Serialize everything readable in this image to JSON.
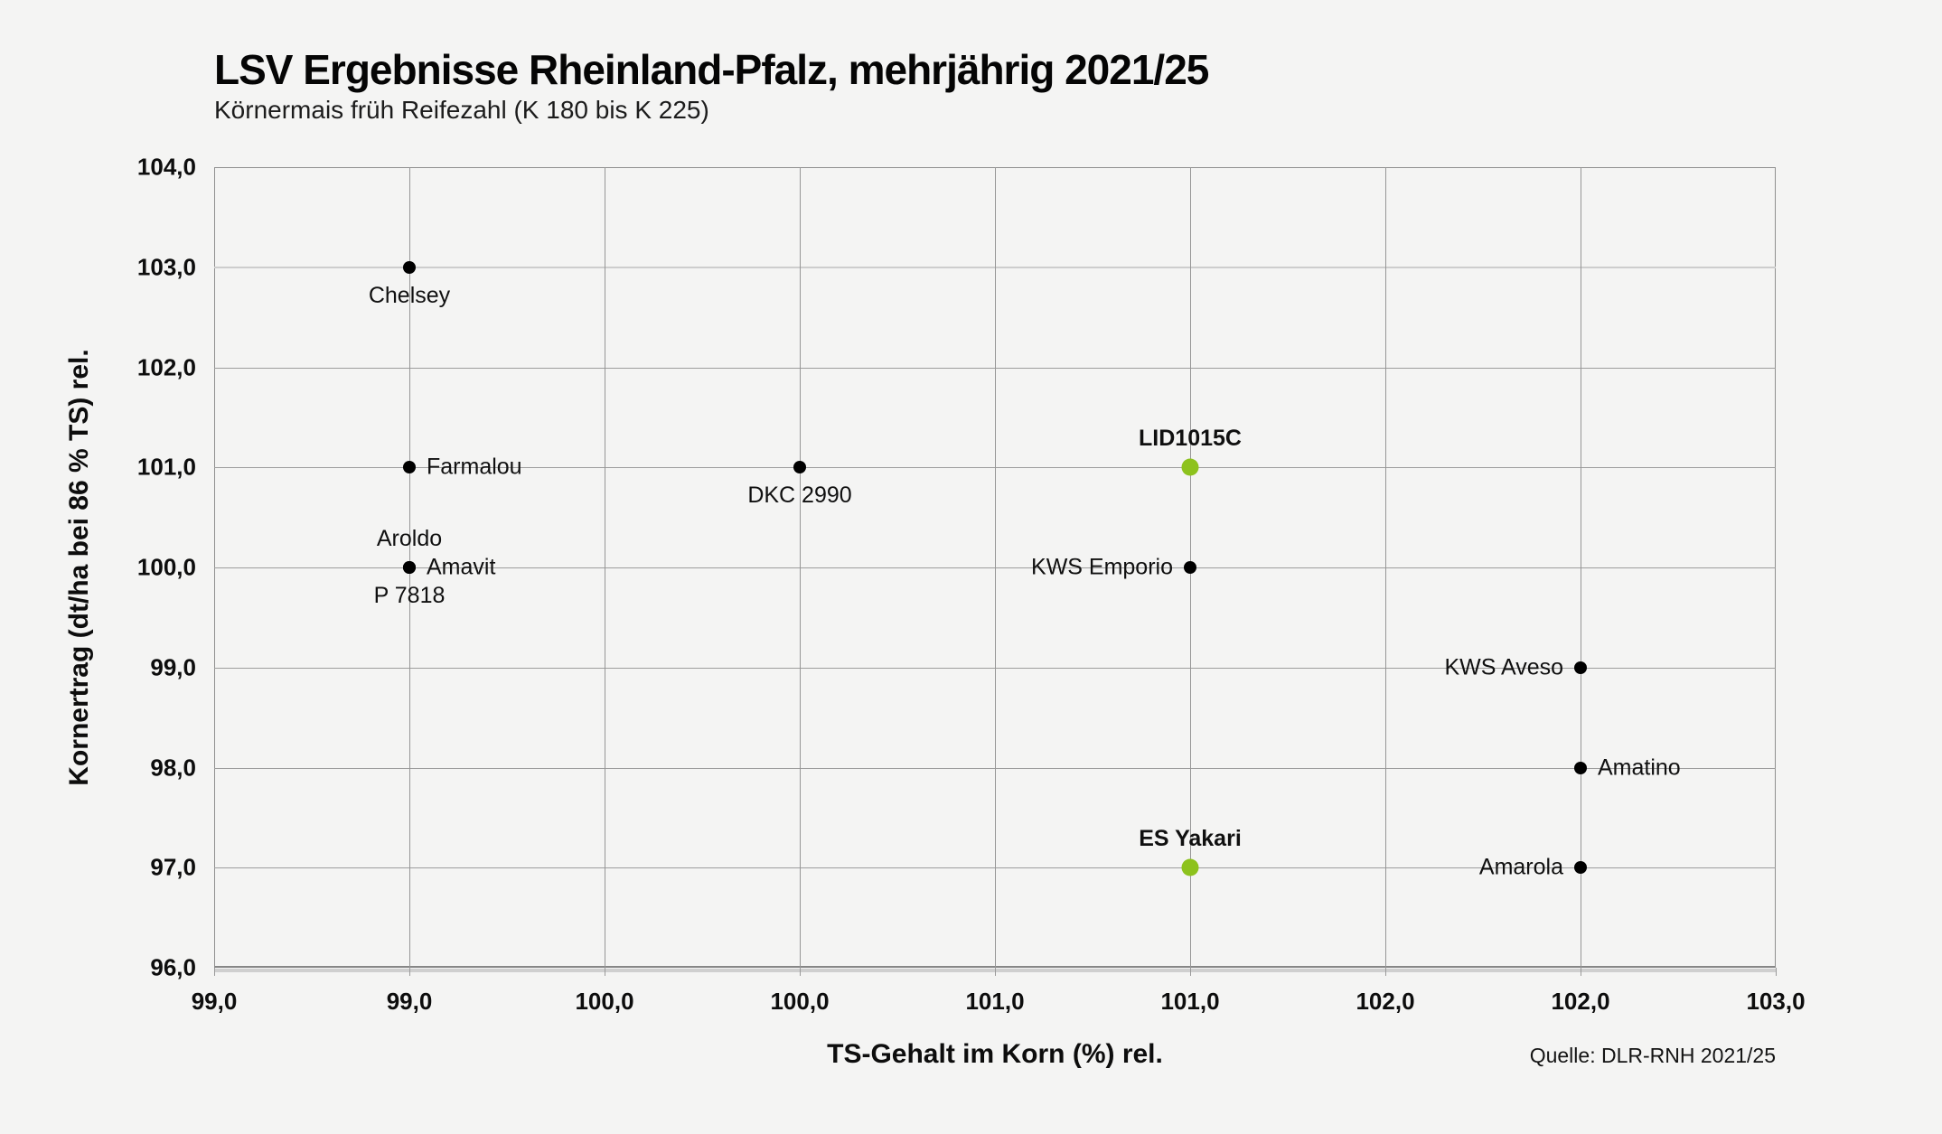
{
  "colors": {
    "background": "#f4f4f3",
    "point_default": "#000000",
    "point_highlight": "#8dc21d",
    "grid": "#9d9d9d",
    "grid_soft": "#cdcdcd"
  },
  "chart_data": {
    "type": "scatter",
    "title": "LSV Ergebnisse Rheinland-Pfalz, mehrjährig 2021/25",
    "subtitle": "Körnermais früh Reifezahl (K 180 bis K 225)",
    "source": "Quelle: DLR-RNH 2021/25",
    "grid": "on",
    "legend": "none",
    "x_axis": {
      "label": "TS-Gehalt im Korn (%) rel.",
      "tick_labels": [
        "99,0",
        "99,0",
        "100,0",
        "100,0",
        "101,0",
        "101,0",
        "102,0",
        "102,0",
        "103,0"
      ],
      "min_label": "99,0",
      "max_label": "103,0"
    },
    "y_axis": {
      "label": "Kornertrag (dt/ha bei 86 % TS) rel.",
      "min": 96.0,
      "max": 104.0,
      "ticks": [
        {
          "value": 104.0,
          "label": "104,0"
        },
        {
          "value": 103.0,
          "label": "103,0",
          "light": true
        },
        {
          "value": 102.0,
          "label": "102,0"
        },
        {
          "value": 101.0,
          "label": "101,0"
        },
        {
          "value": 100.0,
          "label": "100,0"
        },
        {
          "value": 99.0,
          "label": "99,0"
        },
        {
          "value": 98.0,
          "label": "98,0"
        },
        {
          "value": 97.0,
          "label": "97,0"
        },
        {
          "value": 96.0,
          "label": "96,0"
        }
      ]
    },
    "points": [
      {
        "name": "Chelsey",
        "x_tick_index": 1,
        "x_label": "99,0",
        "y": 103.0,
        "label_position": "below",
        "highlight": false
      },
      {
        "name": "Farmalou",
        "x_tick_index": 1,
        "x_label": "99,0",
        "y": 101.0,
        "label_position": "right",
        "highlight": false
      },
      {
        "name": "Aroldo",
        "x_tick_index": 1,
        "x_label": "99,0",
        "y": 100.0,
        "label_position": "above",
        "highlight": false
      },
      {
        "name": "Amavit",
        "x_tick_index": 1,
        "x_label": "99,0",
        "y": 100.0,
        "label_position": "right",
        "highlight": false
      },
      {
        "name": "P 7818",
        "x_tick_index": 1,
        "x_label": "99,0",
        "y": 100.0,
        "label_position": "below",
        "highlight": false
      },
      {
        "name": "DKC 2990",
        "x_tick_index": 3,
        "x_label": "100,0",
        "y": 101.0,
        "label_position": "below",
        "highlight": false
      },
      {
        "name": "LID1015C",
        "x_tick_index": 5,
        "x_label": "101,0",
        "y": 101.0,
        "label_position": "above",
        "highlight": true
      },
      {
        "name": "KWS Emporio",
        "x_tick_index": 5,
        "x_label": "101,0",
        "y": 100.0,
        "label_position": "left",
        "highlight": false
      },
      {
        "name": "KWS Aveso",
        "x_tick_index": 7,
        "x_label": "102,0",
        "y": 99.0,
        "label_position": "left",
        "highlight": false
      },
      {
        "name": "Amatino",
        "x_tick_index": 7,
        "x_label": "102,0",
        "y": 98.0,
        "label_position": "right",
        "highlight": false
      },
      {
        "name": "ES Yakari",
        "x_tick_index": 5,
        "x_label": "101,0",
        "y": 97.0,
        "label_position": "above",
        "highlight": true
      },
      {
        "name": "Amarola",
        "x_tick_index": 7,
        "x_label": "102,0",
        "y": 97.0,
        "label_position": "left",
        "highlight": false
      }
    ]
  }
}
